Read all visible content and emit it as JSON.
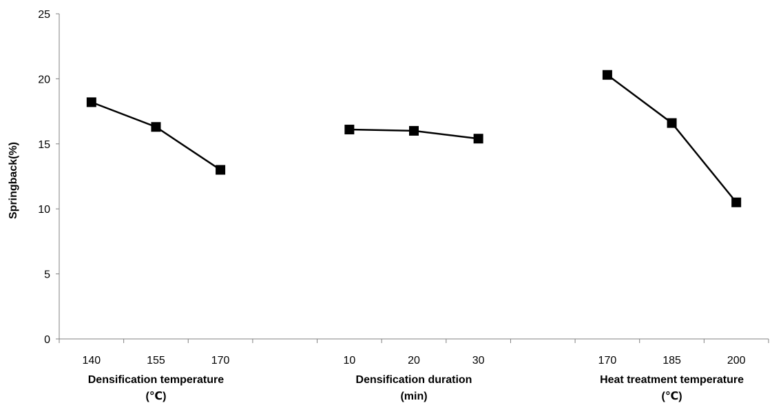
{
  "chart_data": {
    "type": "line",
    "title": "",
    "ylabel": "Springback(%)",
    "ylim": [
      0,
      25
    ],
    "yticks": [
      0,
      5,
      10,
      15,
      20,
      25
    ],
    "grid": false,
    "legend": "none",
    "line_color": "#000000",
    "marker": "square",
    "groups": [
      {
        "xlabel_line1": "Densification temperature",
        "xlabel_line2": "(℃)",
        "categories": [
          "140",
          "155",
          "170"
        ],
        "values": [
          18.2,
          16.3,
          13.0
        ]
      },
      {
        "xlabel_line1": "Densification duration",
        "xlabel_line2": "(min)",
        "categories": [
          "10",
          "20",
          "30"
        ],
        "values": [
          16.1,
          16.0,
          15.4
        ]
      },
      {
        "xlabel_line1": "Heat treatment temperature",
        "xlabel_line2": "(℃)",
        "categories": [
          "170",
          "185",
          "200"
        ],
        "values": [
          20.3,
          16.6,
          10.5
        ]
      }
    ]
  }
}
